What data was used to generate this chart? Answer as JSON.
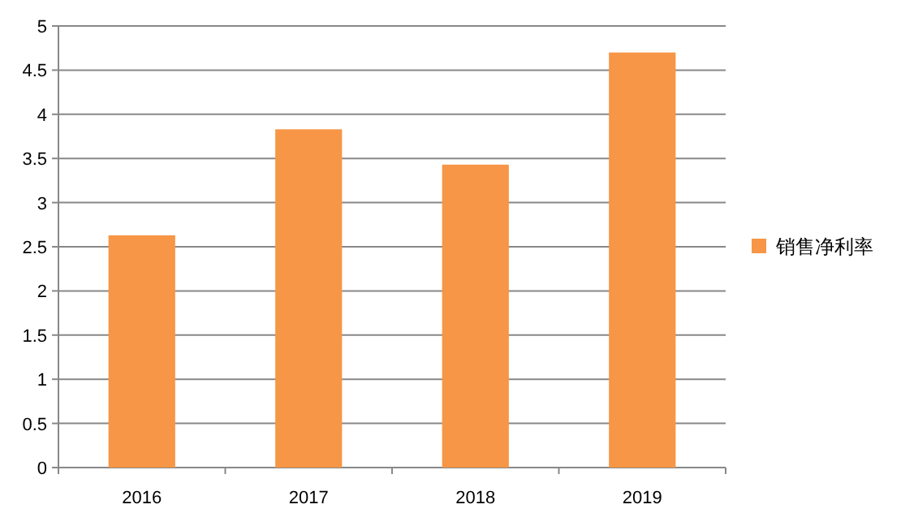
{
  "chart_data": {
    "type": "bar",
    "categories": [
      "2016",
      "2017",
      "2018",
      "2019"
    ],
    "series": [
      {
        "name": "销售净利率",
        "color": "#f79646",
        "values": [
          2.63,
          3.83,
          3.43,
          4.7
        ]
      }
    ],
    "ylim": [
      0,
      5
    ],
    "yticks": [
      0,
      0.5,
      1,
      1.5,
      2,
      2.5,
      3,
      3.5,
      4,
      4.5,
      5
    ],
    "grid": "y",
    "legend": "right"
  }
}
